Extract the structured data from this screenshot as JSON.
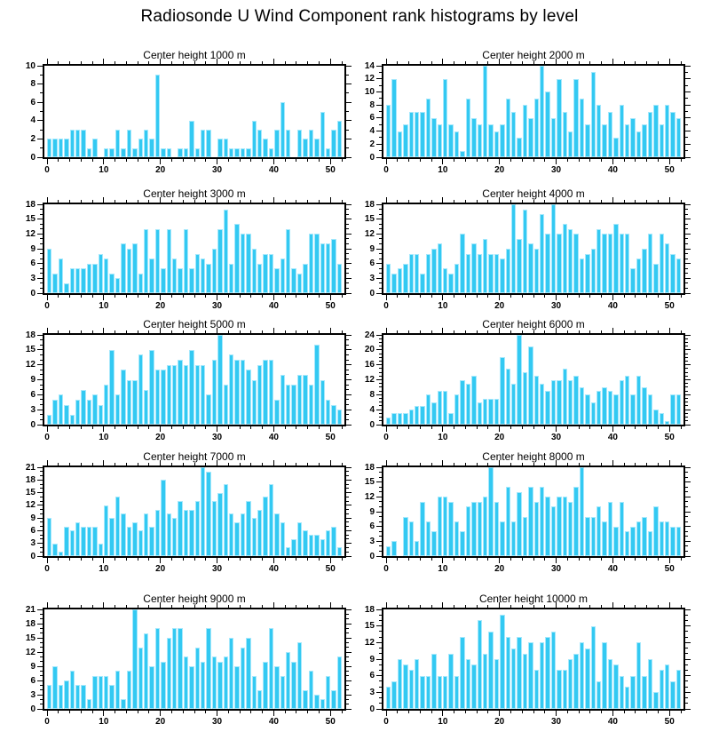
{
  "page_title": "Radiosonde U Wind Component rank histograms by level",
  "colors": {
    "bar_fill": "#33c9f2",
    "bar_edge": "#a5e8fc",
    "axis": "#000000",
    "background": "#ffffff",
    "text": "#000000"
  },
  "chart_data": [
    {
      "type": "bar",
      "title": "Center height 1000 m",
      "xlabel": "",
      "ylabel": "",
      "x_range": [
        0,
        52
      ],
      "xticks": [
        0,
        10,
        20,
        30,
        40,
        50
      ],
      "x_minor_step": 2,
      "ylim": [
        0,
        10
      ],
      "ytick_step": 2,
      "y_minor_step": 1,
      "grid": false,
      "x": "ranks 1-52",
      "values": [
        2,
        2,
        2,
        2,
        3,
        3,
        3,
        1,
        2,
        0,
        1,
        1,
        3,
        1,
        3,
        1,
        2,
        3,
        2,
        9,
        1,
        1,
        0,
        1,
        1,
        4,
        1,
        3,
        3,
        0,
        2,
        2,
        1,
        1,
        1,
        1,
        4,
        3,
        2,
        1,
        3,
        6,
        3,
        0,
        3,
        2,
        3,
        2,
        5,
        1,
        3,
        4
      ]
    },
    {
      "type": "bar",
      "title": "Center height 2000 m",
      "xlabel": "",
      "ylabel": "",
      "x_range": [
        0,
        52
      ],
      "xticks": [
        0,
        10,
        20,
        30,
        40,
        50
      ],
      "x_minor_step": 2,
      "ylim": [
        0,
        14
      ],
      "ytick_step": 2,
      "y_minor_step": 1,
      "grid": false,
      "x": "ranks 1-52",
      "values": [
        8,
        12,
        4,
        5,
        7,
        7,
        7,
        9,
        6,
        5,
        12,
        5,
        4,
        1,
        9,
        6,
        5,
        14,
        5,
        4,
        5,
        9,
        7,
        3,
        8,
        6,
        9,
        14,
        10,
        6,
        12,
        7,
        4,
        12,
        9,
        5,
        13,
        8,
        5,
        7,
        3,
        8,
        5,
        6,
        4,
        5,
        7,
        8,
        5,
        8,
        7,
        6
      ]
    },
    {
      "type": "bar",
      "title": "Center height 3000 m",
      "xlabel": "",
      "ylabel": "",
      "x_range": [
        0,
        52
      ],
      "xticks": [
        0,
        10,
        20,
        30,
        40,
        50
      ],
      "x_minor_step": 2,
      "ylim": [
        0,
        18
      ],
      "ytick_step": 3,
      "y_minor_step": 1,
      "grid": false,
      "x": "ranks 1-52",
      "values": [
        9,
        4,
        7,
        2,
        5,
        5,
        5,
        6,
        6,
        8,
        7,
        4,
        3,
        10,
        9,
        10,
        4,
        13,
        7,
        13,
        5,
        13,
        7,
        5,
        13,
        5,
        8,
        7,
        6,
        9,
        13,
        17,
        6,
        14,
        12,
        12,
        9,
        6,
        8,
        8,
        5,
        7,
        13,
        5,
        4,
        6,
        12,
        12,
        10,
        10,
        11,
        6
      ]
    },
    {
      "type": "bar",
      "title": "Center height 4000 m",
      "xlabel": "",
      "ylabel": "",
      "x_range": [
        0,
        52
      ],
      "xticks": [
        0,
        10,
        20,
        30,
        40,
        50
      ],
      "x_minor_step": 2,
      "ylim": [
        0,
        18
      ],
      "ytick_step": 3,
      "y_minor_step": 1,
      "grid": false,
      "x": "ranks 1-52",
      "values": [
        6,
        4,
        5,
        6,
        8,
        8,
        4,
        8,
        9,
        10,
        5,
        4,
        6,
        12,
        8,
        10,
        8,
        11,
        8,
        8,
        7,
        9,
        18,
        11,
        17,
        10,
        9,
        16,
        12,
        18,
        12,
        14,
        13,
        12,
        7,
        8,
        9,
        13,
        12,
        12,
        14,
        12,
        12,
        5,
        7,
        9,
        12,
        6,
        12,
        10,
        8,
        7
      ]
    },
    {
      "type": "bar",
      "title": "Center height 5000 m",
      "xlabel": "",
      "ylabel": "",
      "x_range": [
        0,
        52
      ],
      "xticks": [
        0,
        10,
        20,
        30,
        40,
        50
      ],
      "x_minor_step": 2,
      "ylim": [
        0,
        18
      ],
      "ytick_step": 3,
      "y_minor_step": 1,
      "grid": false,
      "x": "ranks 1-52",
      "values": [
        2,
        5,
        6,
        4,
        2,
        5,
        7,
        5,
        6,
        4,
        8,
        15,
        6,
        11,
        9,
        9,
        14,
        7,
        15,
        11,
        11,
        12,
        12,
        13,
        12,
        15,
        12,
        12,
        6,
        13,
        18,
        8,
        14,
        13,
        13,
        11,
        9,
        12,
        13,
        13,
        5,
        10,
        8,
        8,
        10,
        10,
        8,
        16,
        9,
        5,
        4,
        3
      ]
    },
    {
      "type": "bar",
      "title": "Center height 6000 m",
      "xlabel": "",
      "ylabel": "",
      "x_range": [
        0,
        52
      ],
      "xticks": [
        0,
        10,
        20,
        30,
        40,
        50
      ],
      "x_minor_step": 2,
      "ylim": [
        0,
        24
      ],
      "ytick_step": 4,
      "y_minor_step": 1,
      "grid": false,
      "x": "ranks 1-52",
      "values": [
        2,
        3,
        3,
        3,
        4,
        5,
        5,
        8,
        6,
        9,
        9,
        3,
        8,
        12,
        11,
        13,
        6,
        7,
        7,
        7,
        18,
        15,
        11,
        24,
        14,
        21,
        13,
        11,
        9,
        12,
        12,
        15,
        12,
        13,
        10,
        8,
        6,
        9,
        10,
        9,
        8,
        12,
        13,
        8,
        13,
        10,
        8,
        4,
        3,
        1,
        8,
        8
      ]
    },
    {
      "type": "bar",
      "title": "Center height 7000 m",
      "xlabel": "",
      "ylabel": "",
      "x_range": [
        0,
        52
      ],
      "xticks": [
        0,
        10,
        20,
        30,
        40,
        50
      ],
      "x_minor_step": 2,
      "ylim": [
        0,
        21
      ],
      "ytick_step": 3,
      "y_minor_step": 1,
      "grid": false,
      "x": "ranks 1-52",
      "values": [
        9,
        3,
        1,
        7,
        6,
        8,
        7,
        7,
        7,
        3,
        12,
        9,
        14,
        10,
        7,
        8,
        6,
        10,
        7,
        11,
        18,
        10,
        9,
        13,
        11,
        11,
        13,
        21,
        20,
        13,
        15,
        17,
        10,
        8,
        10,
        13,
        9,
        11,
        14,
        17,
        10,
        8,
        2,
        4,
        8,
        6,
        5,
        5,
        4,
        6,
        7,
        2
      ]
    },
    {
      "type": "bar",
      "title": "Center height 8000 m",
      "xlabel": "",
      "ylabel": "",
      "x_range": [
        0,
        52
      ],
      "xticks": [
        0,
        10,
        20,
        30,
        40,
        50
      ],
      "x_minor_step": 2,
      "ylim": [
        0,
        18
      ],
      "ytick_step": 3,
      "y_minor_step": 1,
      "grid": false,
      "x": "ranks 1-52",
      "values": [
        2,
        3,
        0,
        8,
        7,
        3,
        11,
        7,
        5,
        12,
        12,
        11,
        7,
        5,
        10,
        11,
        11,
        12,
        18,
        11,
        7,
        14,
        7,
        13,
        8,
        14,
        11,
        14,
        12,
        10,
        12,
        12,
        11,
        14,
        18,
        8,
        8,
        10,
        7,
        11,
        6,
        11,
        5,
        6,
        7,
        8,
        5,
        10,
        7,
        7,
        6,
        6
      ]
    },
    {
      "type": "bar",
      "title": "Center height 9000 m",
      "xlabel": "",
      "ylabel": "",
      "x_range": [
        0,
        52
      ],
      "xticks": [
        0,
        10,
        20,
        30,
        40,
        50
      ],
      "x_minor_step": 2,
      "ylim": [
        0,
        21
      ],
      "ytick_step": 3,
      "y_minor_step": 1,
      "grid": false,
      "x": "ranks 1-52",
      "values": [
        5,
        9,
        5,
        6,
        8,
        5,
        5,
        2,
        7,
        7,
        7,
        5,
        8,
        2,
        8,
        21,
        13,
        16,
        9,
        17,
        10,
        15,
        17,
        17,
        11,
        9,
        13,
        10,
        17,
        11,
        10,
        11,
        15,
        9,
        13,
        15,
        7,
        4,
        10,
        17,
        9,
        7,
        12,
        10,
        14,
        4,
        8,
        3,
        2,
        7,
        4,
        11
      ]
    },
    {
      "type": "bar",
      "title": "Center height 10000 m",
      "xlabel": "",
      "ylabel": "",
      "x_range": [
        0,
        52
      ],
      "xticks": [
        0,
        10,
        20,
        30,
        40,
        50
      ],
      "x_minor_step": 2,
      "ylim": [
        0,
        18
      ],
      "ytick_step": 3,
      "y_minor_step": 1,
      "grid": false,
      "x": "ranks 1-52",
      "values": [
        4,
        5,
        9,
        8,
        7,
        9,
        6,
        6,
        10,
        6,
        6,
        10,
        6,
        13,
        9,
        8,
        16,
        10,
        14,
        9,
        17,
        13,
        11,
        13,
        10,
        12,
        7,
        12,
        13,
        14,
        7,
        7,
        9,
        10,
        12,
        11,
        15,
        5,
        12,
        9,
        8,
        6,
        4,
        6,
        12,
        6,
        9,
        3,
        7,
        8,
        5,
        7
      ]
    }
  ]
}
